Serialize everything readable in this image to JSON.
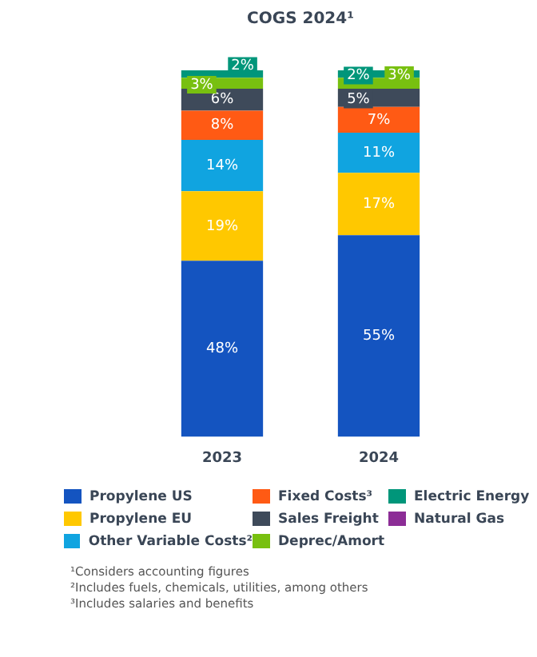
{
  "chart_data": {
    "type": "bar",
    "stacked": true,
    "title": "COGS 2024¹",
    "categories": [
      "2023",
      "2024"
    ],
    "legend": "bottom",
    "tick_labels": "x",
    "grid": false,
    "series": [
      {
        "name": "Propylene US",
        "color": "#1454c0",
        "values": [
          48,
          55
        ],
        "value_labels": [
          "48%",
          "55%"
        ]
      },
      {
        "name": "Propylene EU",
        "color": "#ffc800",
        "values": [
          19,
          17
        ],
        "value_labels": [
          "19%",
          "17%"
        ]
      },
      {
        "name": "Other Variable Costs²",
        "color": "#10a4e0",
        "values": [
          14,
          11
        ],
        "value_labels": [
          "14%",
          "11%"
        ]
      },
      {
        "name": "Fixed Costs³",
        "color": "#ff5a14",
        "values": [
          8,
          7
        ],
        "value_labels": [
          "8%",
          "7%"
        ]
      },
      {
        "name": "Sales Freight",
        "color": "#3e4a5a",
        "values": [
          6,
          5
        ],
        "value_labels": [
          "6%",
          "5%"
        ]
      },
      {
        "name": "Deprec/Amort",
        "color": "#78c010",
        "values": [
          3,
          3
        ],
        "value_labels": [
          "3%",
          "3%"
        ]
      },
      {
        "name": "Electric Energy",
        "color": "#00967a",
        "values": [
          2,
          2
        ],
        "value_labels": [
          "2%",
          "2%"
        ]
      },
      {
        "name": "Natural Gas",
        "color": "#8c2d96",
        "values": [
          null,
          null
        ]
      }
    ],
    "annotations": [
      "¹Considers accounting figures",
      "²Includes fuels, chemicals, utilities, among others",
      "³Includes salaries and benefits"
    ]
  }
}
